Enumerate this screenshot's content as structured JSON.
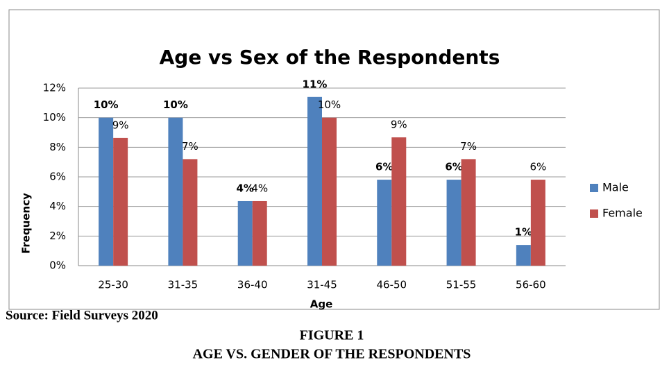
{
  "chart_data": {
    "type": "bar",
    "title": "Age vs Sex of the Respondents",
    "x_label": "Age",
    "y_label": "Frequency",
    "categories": [
      "25-30",
      "31-35",
      "36-40",
      "31-45",
      "46-50",
      "51-55",
      "56-60"
    ],
    "series": [
      {
        "name": "Male",
        "color": "#4f81bd",
        "values": [
          10.0,
          10.0,
          4.36,
          11.4,
          5.81,
          5.81,
          1.4
        ],
        "value_labels": [
          "10%",
          "10%",
          "4%",
          "11%",
          "6%",
          "6%",
          "1%"
        ]
      },
      {
        "name": "Female",
        "color": "#c0504d",
        "values": [
          8.63,
          7.2,
          4.36,
          10.0,
          8.67,
          7.2,
          5.81
        ],
        "value_labels": [
          "9%",
          "7%",
          "4%",
          "10%",
          "9%",
          "7%",
          "6%"
        ]
      }
    ],
    "ylim": [
      0,
      12
    ],
    "yticks": [
      {
        "value": 0,
        "label": "0%"
      },
      {
        "value": 2,
        "label": "2%"
      },
      {
        "value": 4,
        "label": "4%"
      },
      {
        "value": 6,
        "label": "6%"
      },
      {
        "value": 8,
        "label": "8%"
      },
      {
        "value": 10,
        "label": "10%"
      },
      {
        "value": 12,
        "label": "12%"
      }
    ],
    "grid": true,
    "legend": "right",
    "source": "Source: Field Surveys 2020",
    "figure_label": "FIGURE 1",
    "figure_caption": "AGE VS. GENDER OF THE RESPONDENTS"
  }
}
